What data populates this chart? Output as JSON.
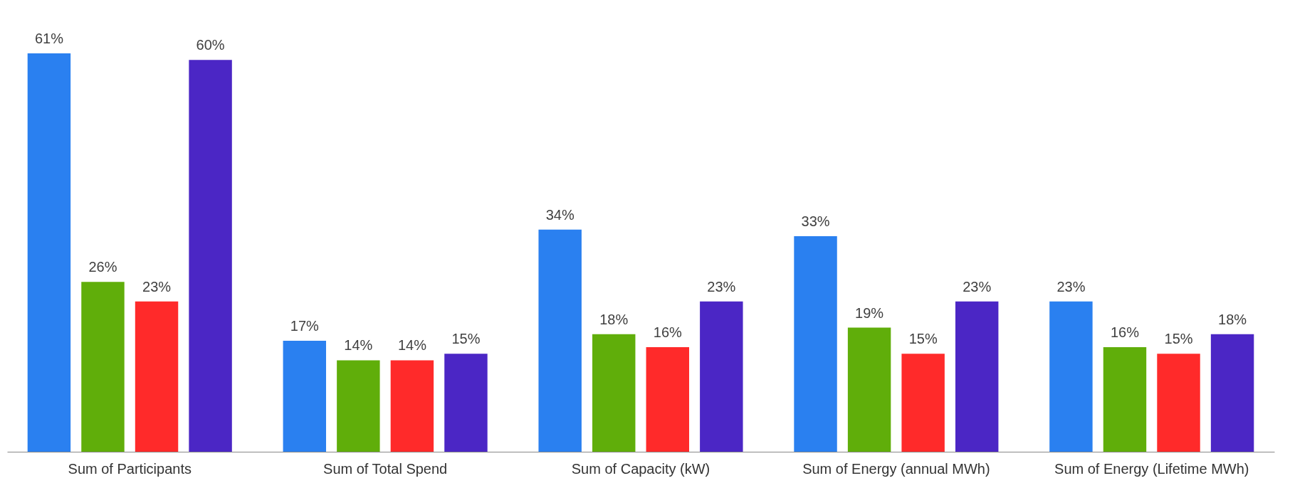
{
  "chart_data": {
    "type": "bar",
    "categories": [
      "Sum of Participants",
      "Sum of Total Spend",
      "Sum of Capacity (kW)",
      "Sum of Energy (annual MWh)",
      "Sum of Energy (Lifetime MWh)"
    ],
    "series": [
      {
        "color": "#2a80f0",
        "values": [
          61,
          17,
          34,
          33,
          23
        ],
        "value_labels": [
          "61%",
          "17%",
          "34%",
          "33%",
          "23%"
        ]
      },
      {
        "color": "#60ae0a",
        "values": [
          26,
          14,
          18,
          19,
          16
        ],
        "value_labels": [
          "26%",
          "14%",
          "18%",
          "19%",
          "16%"
        ]
      },
      {
        "color": "#ff2a2a",
        "values": [
          23,
          14,
          16,
          15,
          15
        ],
        "value_labels": [
          "23%",
          "14%",
          "16%",
          "15%",
          "15%"
        ]
      },
      {
        "color": "#4b26c5",
        "values": [
          60,
          15,
          23,
          23,
          18
        ],
        "value_labels": [
          "60%",
          "15%",
          "23%",
          "23%",
          "18%"
        ]
      }
    ],
    "legend": false,
    "grid": false
  }
}
